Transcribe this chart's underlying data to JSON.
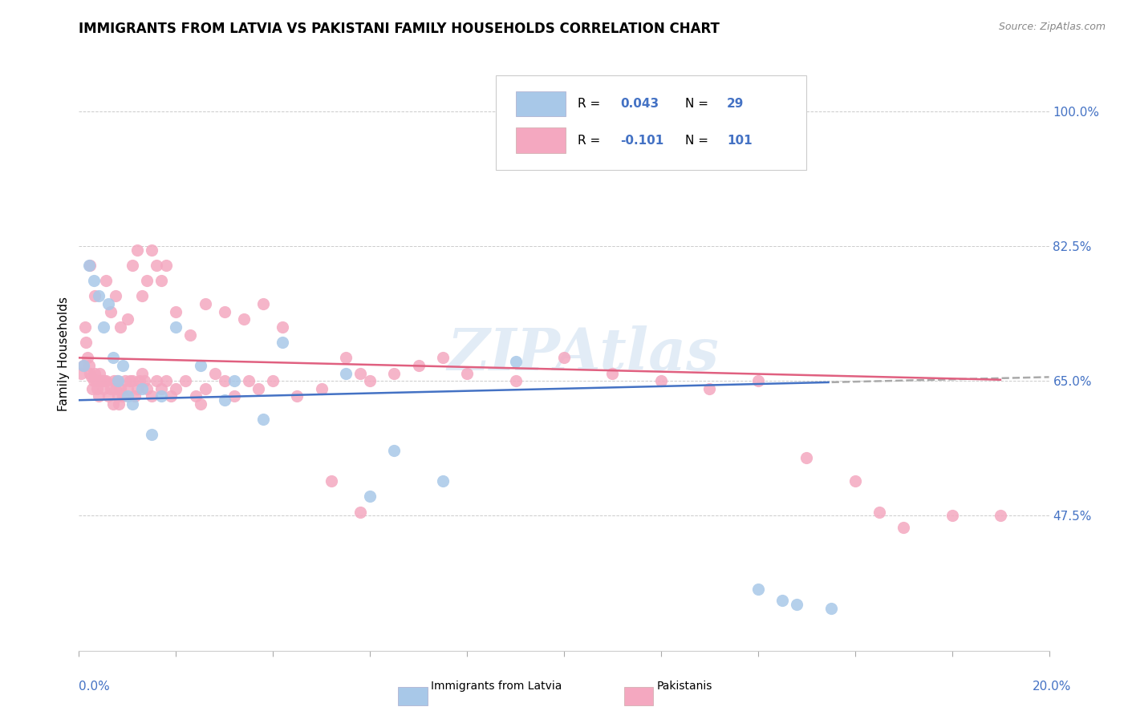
{
  "title": "IMMIGRANTS FROM LATVIA VS PAKISTANI FAMILY HOUSEHOLDS CORRELATION CHART",
  "source": "Source: ZipAtlas.com",
  "ylabel": "Family Households",
  "yticks": [
    47.5,
    65.0,
    82.5,
    100.0
  ],
  "ytick_labels": [
    "47.5%",
    "65.0%",
    "82.5%",
    "100.0%"
  ],
  "xlim": [
    0.0,
    20.0
  ],
  "ylim": [
    30.0,
    107.0
  ],
  "color_latvia": "#A8C8E8",
  "color_pakistan": "#F4A8C0",
  "color_trend_latvia": "#4472C4",
  "color_trend_pakistan": "#E06080",
  "color_trend_ext": "#AAAAAA",
  "color_axis_labels": "#4472C4",
  "color_grid": "#CCCCCC",
  "watermark_text": "ZIPAtlas",
  "background_color": "#FFFFFF",
  "legend_R1": "R = 0.043",
  "legend_N1": "N =  29",
  "legend_R2": "R = -0.101",
  "legend_N2": "N = 101",
  "latvia_x": [
    0.1,
    0.2,
    0.3,
    0.4,
    0.5,
    0.6,
    0.7,
    0.8,
    0.9,
    1.0,
    1.1,
    1.3,
    1.5,
    1.7,
    2.0,
    2.5,
    3.0,
    3.2,
    3.8,
    4.2,
    5.5,
    6.0,
    6.5,
    7.5,
    9.0,
    14.0,
    14.5,
    14.8,
    15.5
  ],
  "latvia_y": [
    67.0,
    80.0,
    78.0,
    76.0,
    72.0,
    75.0,
    68.0,
    65.0,
    67.0,
    63.0,
    62.0,
    64.0,
    58.0,
    63.0,
    72.0,
    67.0,
    62.5,
    65.0,
    60.0,
    70.0,
    66.0,
    50.0,
    56.0,
    52.0,
    67.5,
    38.0,
    36.5,
    36.0,
    35.5
  ],
  "pakistan_x": [
    0.05,
    0.1,
    0.15,
    0.18,
    0.2,
    0.22,
    0.25,
    0.28,
    0.3,
    0.32,
    0.35,
    0.38,
    0.4,
    0.42,
    0.45,
    0.48,
    0.5,
    0.52,
    0.55,
    0.6,
    0.65,
    0.7,
    0.72,
    0.75,
    0.78,
    0.8,
    0.82,
    0.85,
    0.9,
    0.95,
    1.0,
    1.05,
    1.1,
    1.15,
    1.2,
    1.25,
    1.3,
    1.35,
    1.4,
    1.5,
    1.6,
    1.7,
    1.8,
    1.9,
    2.0,
    2.2,
    2.4,
    2.5,
    2.6,
    2.8,
    3.0,
    3.2,
    3.5,
    3.7,
    4.0,
    4.5,
    5.0,
    5.5,
    5.8,
    6.0,
    6.5,
    7.0,
    7.5,
    8.0,
    9.0,
    10.0,
    11.0,
    12.0,
    13.0,
    14.0,
    15.0,
    16.0,
    16.5,
    17.0,
    18.0,
    19.0,
    0.12,
    0.22,
    0.32,
    0.55,
    0.65,
    0.75,
    0.85,
    1.0,
    1.1,
    1.2,
    1.3,
    1.4,
    1.5,
    1.6,
    1.7,
    1.8,
    2.0,
    2.3,
    2.6,
    3.0,
    3.4,
    3.8,
    4.2,
    5.2,
    5.8
  ],
  "pakistan_y": [
    66.0,
    67.0,
    70.0,
    68.0,
    67.0,
    66.0,
    65.5,
    64.0,
    65.0,
    66.0,
    65.0,
    64.0,
    63.0,
    66.0,
    65.0,
    65.0,
    64.0,
    65.0,
    65.0,
    63.0,
    64.0,
    62.0,
    65.0,
    64.0,
    65.0,
    63.0,
    62.0,
    64.0,
    63.0,
    65.0,
    64.0,
    65.0,
    65.0,
    63.0,
    64.0,
    65.0,
    66.0,
    65.0,
    64.0,
    63.0,
    65.0,
    64.0,
    65.0,
    63.0,
    64.0,
    65.0,
    63.0,
    62.0,
    64.0,
    66.0,
    65.0,
    63.0,
    65.0,
    64.0,
    65.0,
    63.0,
    64.0,
    68.0,
    66.0,
    65.0,
    66.0,
    67.0,
    68.0,
    66.0,
    65.0,
    68.0,
    66.0,
    65.0,
    64.0,
    65.0,
    55.0,
    52.0,
    48.0,
    46.0,
    47.5,
    47.5,
    72.0,
    80.0,
    76.0,
    78.0,
    74.0,
    76.0,
    72.0,
    73.0,
    80.0,
    82.0,
    76.0,
    78.0,
    82.0,
    80.0,
    78.0,
    80.0,
    74.0,
    71.0,
    75.0,
    74.0,
    73.0,
    75.0,
    72.0,
    52.0,
    48.0
  ]
}
